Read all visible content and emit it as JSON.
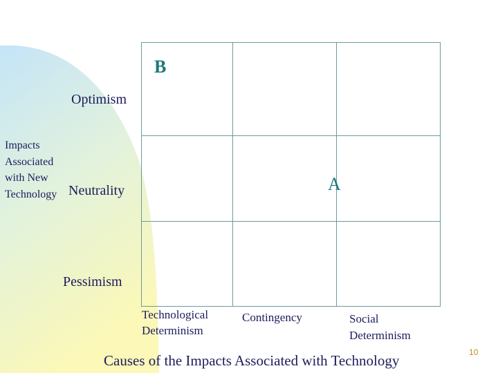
{
  "markers": {
    "b": "B",
    "a": "A"
  },
  "rows": [
    "Optimism",
    "Neutrality",
    "Pessimism"
  ],
  "row_axis_title": "Impacts Associated with New Technology",
  "columns": [
    "Technological Determinism",
    "Contingency",
    "Social Determinism"
  ],
  "column_axis_title": "Causes of the Impacts Associated with Technology",
  "page_number": "10"
}
